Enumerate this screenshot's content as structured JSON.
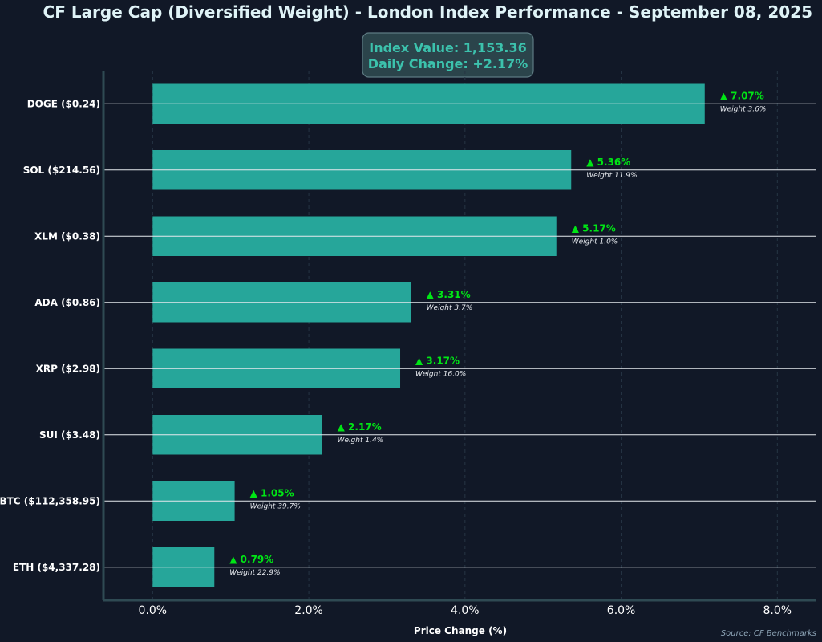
{
  "chart_data": {
    "type": "bar",
    "orientation": "horizontal",
    "title": "CF Large Cap (Diversified Weight) - London Index Performance - September 08, 2025",
    "info_box": {
      "line1": "Index Value: 1,153.36",
      "line2": "Daily Change: +2.17%"
    },
    "categories": [
      "DOGE ($0.24)",
      "SOL ($214.56)",
      "XLM ($0.38)",
      "ADA ($0.86)",
      "XRP ($2.98)",
      "SUI ($3.48)",
      "BTC ($112,358.95)",
      "ETH ($4,337.28)"
    ],
    "values": [
      7.07,
      5.36,
      5.17,
      3.31,
      3.17,
      2.17,
      1.05,
      0.79
    ],
    "value_labels": [
      "▲ 7.07%",
      "▲ 5.36%",
      "▲ 5.17%",
      "▲ 3.31%",
      "▲ 3.17%",
      "▲ 2.17%",
      "▲ 1.05%",
      "▲ 0.79%"
    ],
    "weight_labels": [
      "Weight 3.6%",
      "Weight 11.9%",
      "Weight 1.0%",
      "Weight 3.7%",
      "Weight 16.0%",
      "Weight 1.4%",
      "Weight 39.7%",
      "Weight 22.9%"
    ],
    "xlabel": "Price Change (%)",
    "ylabel": "",
    "xlim": [
      -0.63,
      8.5
    ],
    "xticks": [
      0,
      2,
      4,
      6,
      8
    ],
    "xtick_labels": [
      "0.0%",
      "2.0%",
      "4.0%",
      "6.0%",
      "8.0%"
    ],
    "grid": "vertical dashed",
    "source": "Source: CF Benchmarks",
    "colors": {
      "background": "#111827",
      "bar": "#26a69a",
      "positive": "#00e515",
      "title": "#dff3f7",
      "info_text": "#3cc2ad",
      "info_box": "#2b444b",
      "axis": "#2f4a53",
      "grid": "#263545",
      "label": "#ffffff",
      "source": "#8da4b6"
    }
  }
}
